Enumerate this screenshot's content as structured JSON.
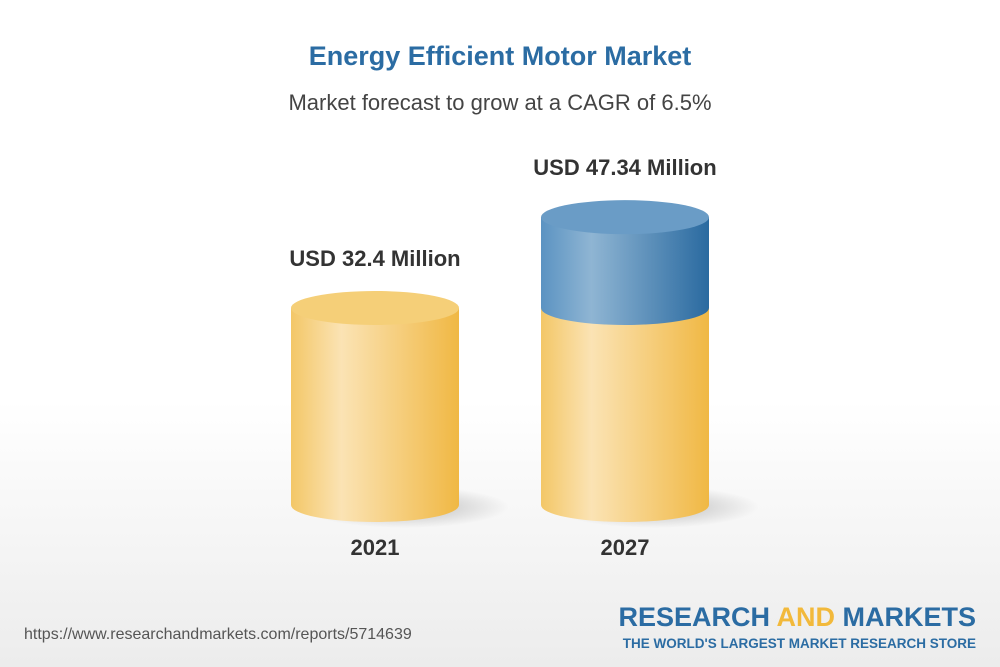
{
  "chart_data": {
    "type": "bar",
    "style": "3d-cylinder",
    "title": "Energy Efficient Motor Market",
    "subtitle": "Market forecast to grow at a CAGR of 6.5%",
    "categories": [
      "2021",
      "2027"
    ],
    "values": [
      32.4,
      47.34
    ],
    "data_labels": [
      "USD 32.4 Million",
      "USD 47.34 Million"
    ],
    "unit": "USD Million",
    "colors": {
      "base": "#f2c15a",
      "growth": "#4a86b8"
    }
  },
  "footer": {
    "url": "https://www.researchandmarkets.com/reports/5714639",
    "logo_part1": "RESEARCH ",
    "logo_part2": "AND",
    "logo_part3": " MARKETS",
    "tagline": "THE WORLD'S LARGEST MARKET RESEARCH STORE"
  }
}
